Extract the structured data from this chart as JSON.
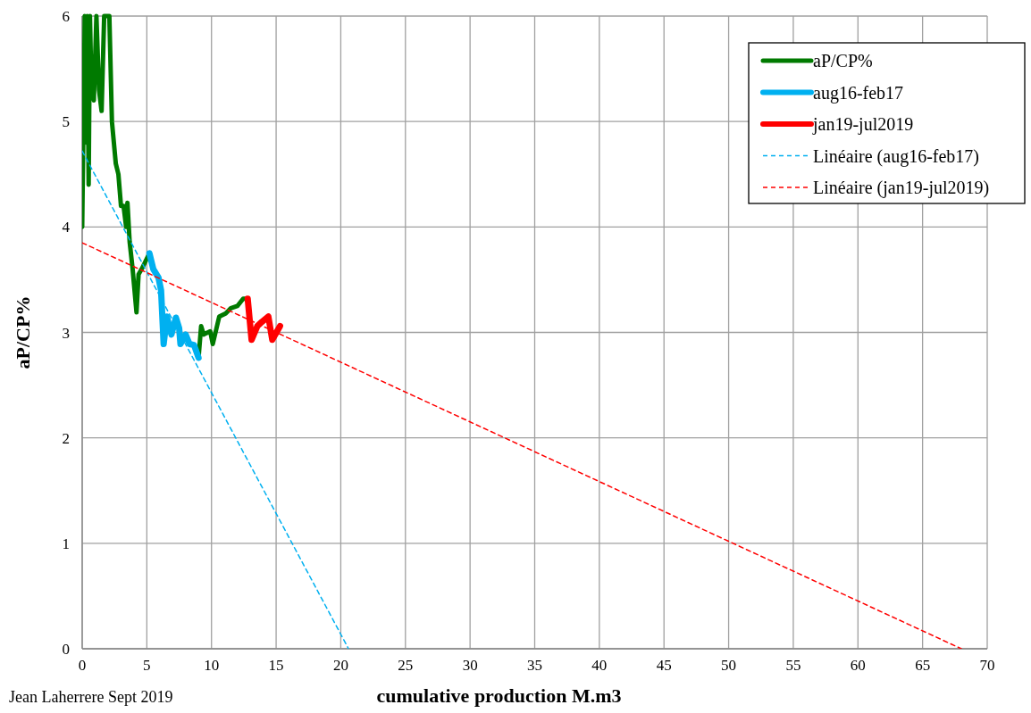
{
  "chart_data": {
    "type": "line",
    "xlabel": "cumulative production M.m3",
    "ylabel": "aP/CP%",
    "xlim": [
      0,
      70
    ],
    "ylim": [
      0,
      6
    ],
    "xticks": [
      0,
      5,
      10,
      15,
      20,
      25,
      30,
      35,
      40,
      45,
      50,
      55,
      60,
      65,
      70
    ],
    "yticks": [
      0,
      1,
      2,
      3,
      4,
      5,
      6
    ],
    "grid": true,
    "legend": "top right",
    "annotations": [
      "Jean Laherrere Sept 2019"
    ],
    "series": [
      {
        "name": "aP/CP%",
        "color": "#007a00",
        "line_style": "solid",
        "x": [
          0,
          0.1,
          0.2,
          0.3,
          0.4,
          0.5,
          0.6,
          0.7,
          0.9,
          1.1,
          1.3,
          1.5,
          1.7,
          1.9,
          2.1,
          2.3,
          2.6,
          2.8,
          3.0,
          3.2,
          3.4,
          3.5,
          3.67,
          3.9,
          4.2,
          4.36,
          4.6,
          4.84,
          5.2,
          null,
          9.0,
          9.2,
          9.4,
          9.9,
          10.1,
          10.6,
          11.1,
          11.5,
          12.0,
          12.45,
          12.8
        ],
        "values": [
          4.0,
          5.0,
          6,
          4.8,
          6,
          4.4,
          6,
          5.4,
          5.2,
          6,
          5.3,
          5.1,
          6,
          6,
          6,
          5.0,
          4.6,
          4.5,
          4.2,
          4.2,
          4.0,
          4.23,
          3.86,
          3.6,
          3.19,
          3.55,
          3.6,
          3.66,
          3.75,
          null,
          2.76,
          3.06,
          2.98,
          3.01,
          2.89,
          3.15,
          3.18,
          3.23,
          3.25,
          3.32,
          3.32
        ]
      },
      {
        "name": "aug16-feb17",
        "color": "#00b0f0",
        "line_style": "solid",
        "x": [
          5.2,
          5.5,
          5.9,
          6.1,
          6.3,
          6.55,
          6.9,
          7.25,
          7.5,
          7.6,
          8.0,
          8.3,
          8.65,
          9.0
        ],
        "values": [
          3.75,
          3.6,
          3.52,
          3.4,
          2.89,
          3.15,
          2.98,
          3.14,
          3.04,
          2.89,
          2.98,
          2.89,
          2.88,
          2.76
        ]
      },
      {
        "name": "jan19-jul2019",
        "color": "#ff0000",
        "line_style": "solid",
        "x": [
          12.8,
          13.1,
          13.55,
          13.9,
          14.4,
          14.7,
          15.3
        ],
        "values": [
          3.32,
          2.93,
          3.06,
          3.1,
          3.15,
          2.93,
          3.06
        ]
      },
      {
        "name": "Linéaire (aug16-feb17)",
        "color": "#00b0f0",
        "line_style": "dashed",
        "x": [
          0,
          20.6
        ],
        "values": [
          4.72,
          0
        ]
      },
      {
        "name": "Linéaire (jan19-jul2019)",
        "color": "#ff0000",
        "line_style": "dashed",
        "x": [
          0,
          68
        ],
        "values": [
          3.85,
          0
        ]
      }
    ]
  }
}
